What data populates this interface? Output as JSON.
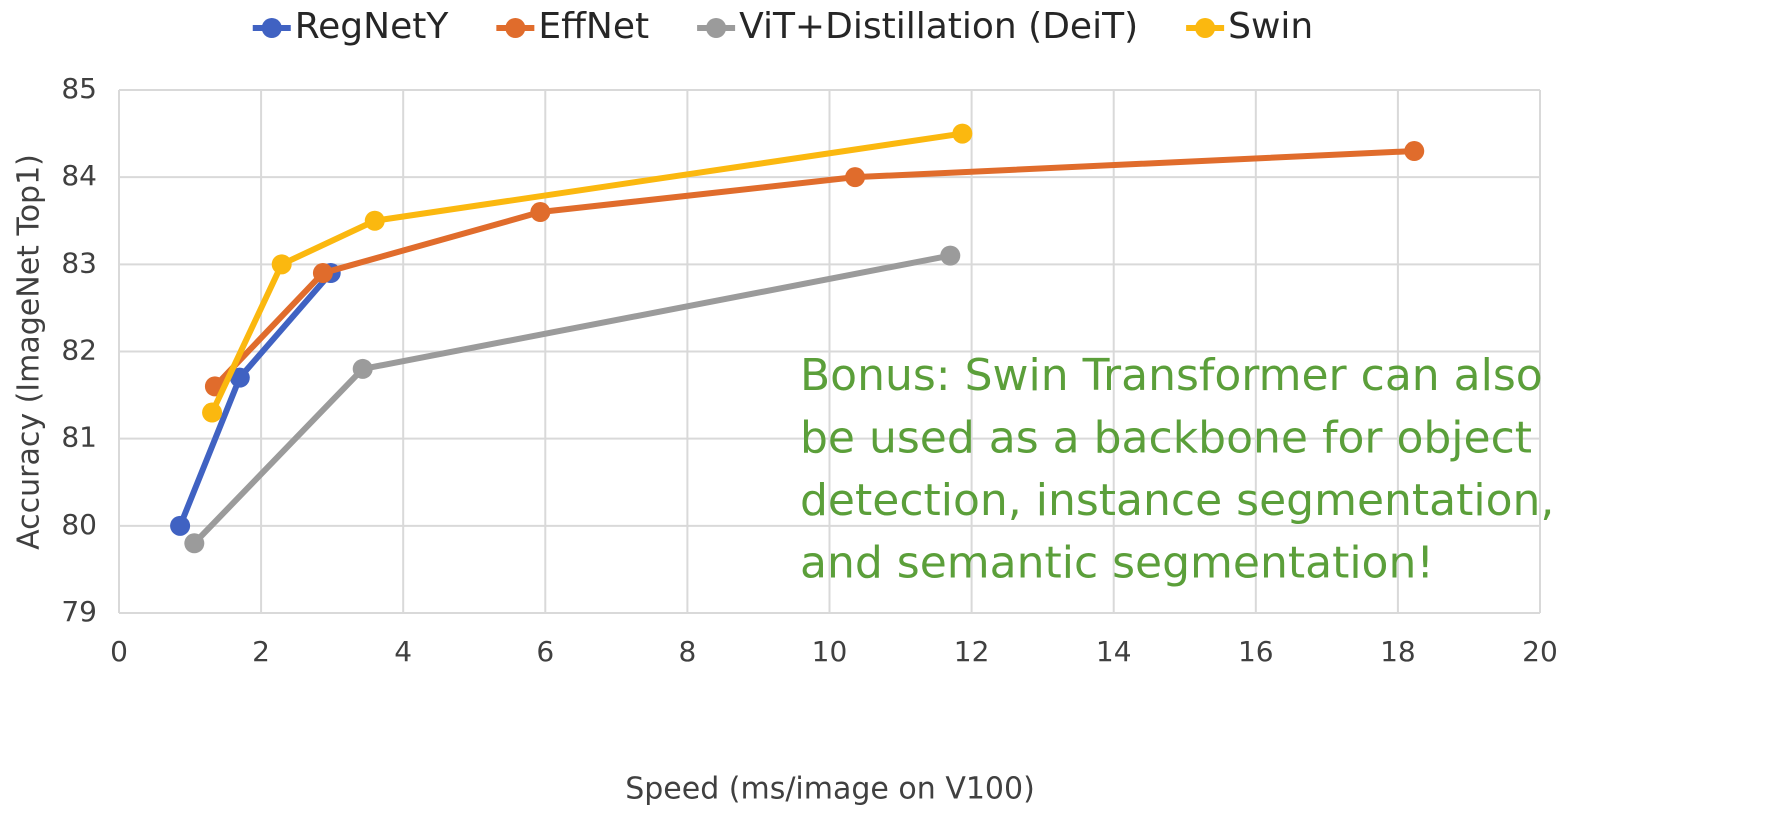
{
  "chart_data": {
    "type": "line",
    "xlabel": "Speed (ms/image on V100)",
    "ylabel": "Accuracy (ImageNet Top1)",
    "xlim": [
      0,
      20
    ],
    "xticks": [
      0,
      2,
      4,
      6,
      8,
      10,
      12,
      14,
      16,
      18,
      20
    ],
    "ylim": [
      79,
      85
    ],
    "yticks": [
      79,
      80,
      81,
      82,
      83,
      84,
      85
    ],
    "grid": true,
    "legend": "top",
    "annotation": [
      "Bonus: Swin Transformer can also",
      "be used as a backbone for object",
      "detection, instance segmentation,",
      "and semantic segmentation!"
    ],
    "series": [
      {
        "name": "RegNetY",
        "color": "#4062c2",
        "x": [
          0.86,
          1.7,
          2.98
        ],
        "values": [
          80.0,
          81.7,
          82.9
        ]
      },
      {
        "name": "EffNet",
        "color": "#e06c2c",
        "x": [
          1.35,
          2.87,
          5.93,
          10.36,
          18.23
        ],
        "values": [
          81.6,
          82.9,
          83.6,
          84.0,
          84.3
        ]
      },
      {
        "name": "ViT+Distillation (DeiT)",
        "color": "#9b9b9b",
        "x": [
          1.06,
          3.43,
          11.7
        ],
        "values": [
          79.8,
          81.8,
          83.1
        ]
      },
      {
        "name": "Swin",
        "color": "#fbb80f",
        "x": [
          1.31,
          2.29,
          3.6,
          11.87
        ],
        "values": [
          81.3,
          83.0,
          83.5,
          84.5
        ]
      }
    ]
  }
}
